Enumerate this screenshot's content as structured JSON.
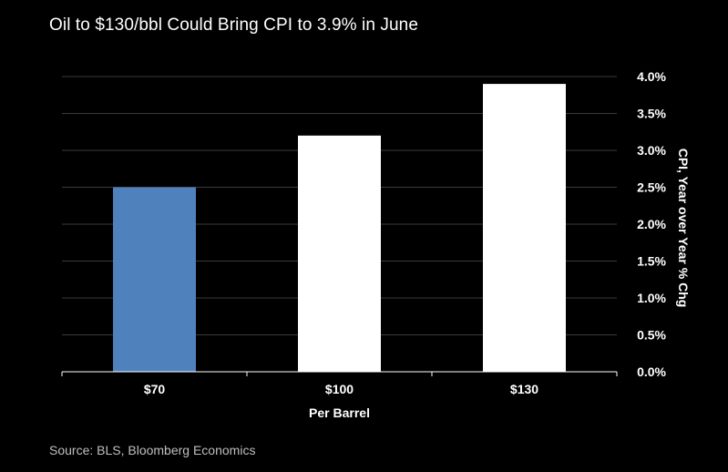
{
  "header": {
    "title": "Oil to $130/bbl Could Bring CPI to 3.9% in June"
  },
  "footer": {
    "source": "Source: BLS, Bloomberg Economics"
  },
  "chart_data": {
    "type": "bar",
    "title": "Oil to $130/bbl Could Bring CPI to 3.9% in June",
    "categories": [
      "$70",
      "$100",
      "$130"
    ],
    "values": [
      2.5,
      3.2,
      3.9
    ],
    "bar_colors": [
      "#4f81bd",
      "#ffffff",
      "#ffffff"
    ],
    "xlabel": "Per Barrel",
    "ylabel": "CPI, Year over Year % Chg",
    "ylim": [
      0,
      4.0
    ],
    "yticks": [
      0.0,
      0.5,
      1.0,
      1.5,
      2.0,
      2.5,
      3.0,
      3.5,
      4.0
    ],
    "ytick_labels": [
      "0.0%",
      "0.5%",
      "1.0%",
      "1.5%",
      "2.0%",
      "2.5%",
      "3.0%",
      "3.5%",
      "4.0%"
    ],
    "grid": true,
    "y_axis_side": "right",
    "grid_color": "#3a3a3a"
  }
}
